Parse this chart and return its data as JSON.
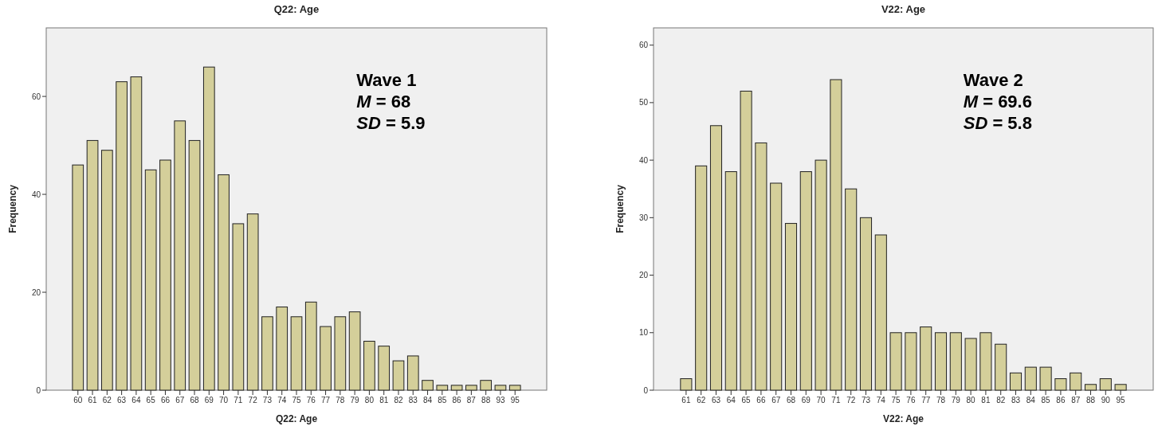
{
  "chart_data": [
    {
      "type": "bar",
      "title": "Q22: Age",
      "xlabel": "Q22: Age",
      "ylabel": "Frequency",
      "categories": [
        "60",
        "61",
        "62",
        "63",
        "64",
        "65",
        "66",
        "67",
        "68",
        "69",
        "70",
        "71",
        "72",
        "73",
        "74",
        "75",
        "76",
        "77",
        "78",
        "79",
        "80",
        "81",
        "82",
        "83",
        "84",
        "85",
        "86",
        "87",
        "88",
        "93",
        "95"
      ],
      "values": [
        46,
        51,
        49,
        63,
        64,
        45,
        47,
        55,
        51,
        66,
        44,
        34,
        36,
        15,
        17,
        15,
        18,
        13,
        15,
        16,
        10,
        9,
        6,
        7,
        2,
        1,
        1,
        1,
        2,
        1,
        1
      ],
      "color": "#d4cf9a",
      "ylim": [
        0,
        74
      ],
      "yticks": [
        0,
        20,
        40,
        60
      ],
      "grid": false,
      "annotations": [
        "Wave 1",
        "M = 68",
        "SD = 5.9"
      ]
    },
    {
      "type": "bar",
      "title": "V22: Age",
      "xlabel": "V22: Age",
      "ylabel": "Frequency",
      "categories": [
        "61",
        "62",
        "63",
        "64",
        "65",
        "66",
        "67",
        "68",
        "69",
        "70",
        "71",
        "72",
        "73",
        "74",
        "75",
        "76",
        "77",
        "78",
        "79",
        "80",
        "81",
        "82",
        "83",
        "84",
        "85",
        "86",
        "87",
        "88",
        "90",
        "95"
      ],
      "values": [
        2,
        39,
        46,
        38,
        52,
        43,
        36,
        29,
        38,
        40,
        54,
        35,
        30,
        27,
        10,
        10,
        11,
        10,
        10,
        9,
        10,
        8,
        3,
        4,
        4,
        2,
        3,
        1,
        2,
        1
      ],
      "color": "#d4cf9a",
      "ylim": [
        0,
        63
      ],
      "yticks": [
        0,
        10,
        20,
        30,
        40,
        50,
        60
      ],
      "grid": false,
      "annotations": [
        "Wave 2",
        "M = 69.6",
        "SD = 5.8"
      ]
    }
  ]
}
